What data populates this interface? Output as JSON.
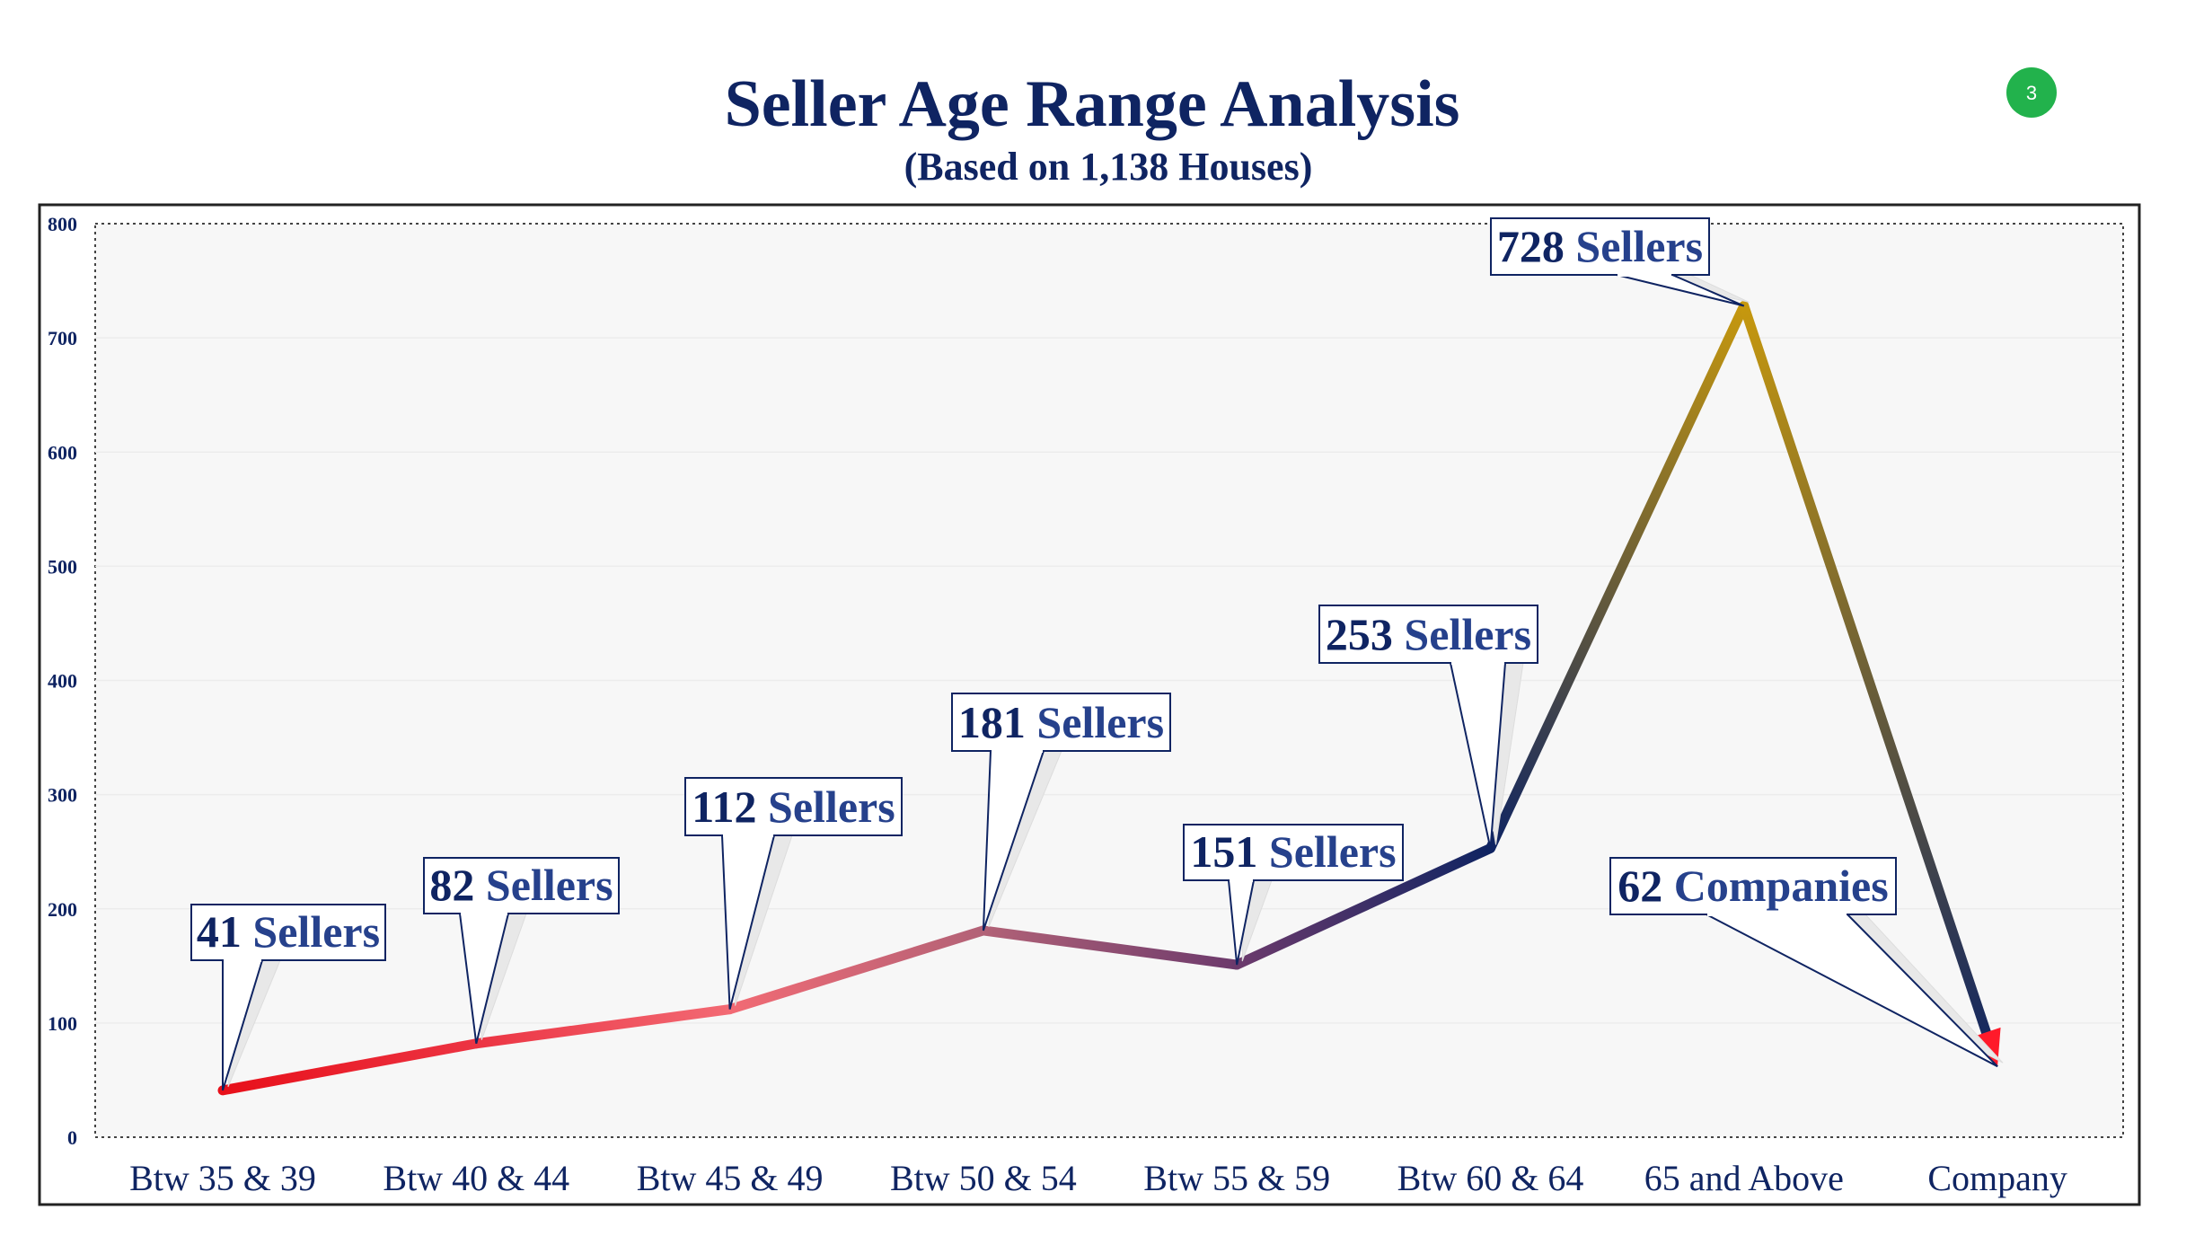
{
  "page": {
    "badge": "3"
  },
  "chart_data": {
    "type": "line",
    "title": "Seller Age Range Analysis",
    "subtitle": "(Based on 1,138 Houses)",
    "categories": [
      "Btw 35 & 39",
      "Btw 40 & 44",
      "Btw 45 & 49",
      "Btw 50 & 54",
      "Btw 55 & 59",
      "Btw 60 & 64",
      "65 and Above",
      "Company"
    ],
    "values": [
      41,
      82,
      112,
      181,
      151,
      253,
      728,
      62
    ],
    "data_labels": [
      {
        "number": "41",
        "text": "Sellers"
      },
      {
        "number": "82",
        "text": "Sellers"
      },
      {
        "number": "112",
        "text": "Sellers"
      },
      {
        "number": "181",
        "text": "Sellers"
      },
      {
        "number": "151",
        "text": "Sellers"
      },
      {
        "number": "253",
        "text": "Sellers"
      },
      {
        "number": "728",
        "text": "Sellers"
      },
      {
        "number": "62",
        "text": "Companies"
      }
    ],
    "ylim": [
      0,
      800
    ],
    "yticks": [
      0,
      100,
      200,
      300,
      400,
      500,
      600,
      700,
      800
    ],
    "grid": true,
    "legend": "none",
    "colors": {
      "title": "#0f2462",
      "segments": [
        "#e8101a",
        "#ec3443",
        "#f26a74",
        "#b26277",
        "#6c3a6c",
        "#0f2462",
        "#c6980e",
        "#0f2462",
        "#f26a74",
        "#ff1a2a"
      ],
      "badge": "#22b24c",
      "plot_bg": "#f7f7f7"
    }
  }
}
